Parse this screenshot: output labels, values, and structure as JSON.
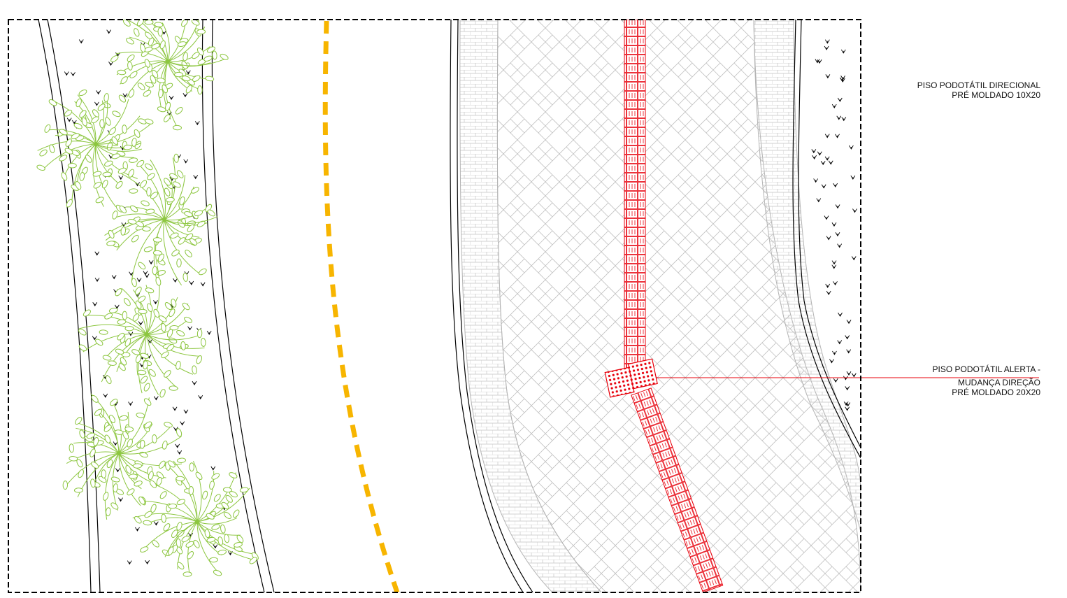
{
  "labels": {
    "directional": {
      "line1": "PISO PODOTÁTIL DIRECIONAL",
      "line2": "PRÉ MOLDADO 10X20"
    },
    "alert": {
      "line1": "PISO PODOTÁTIL ALERTA -",
      "line2": "MUDANÇA DIREÇÃO",
      "line3": "PRÉ MOLDADO 20X20"
    }
  },
  "colors": {
    "frame": "#000000",
    "curb": "#000000",
    "road_marking": "#f7b500",
    "tactile": "#e8000b",
    "paver": "#b4b4b4",
    "tree": "#8cc63f",
    "grass_symbol": "#000000"
  }
}
